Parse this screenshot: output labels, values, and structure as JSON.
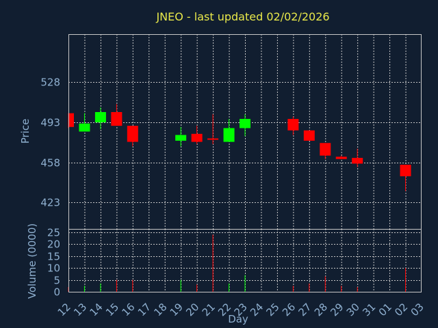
{
  "chart_data": {
    "type": "candlestick",
    "title": "JNEO - last updated 02/02/2026",
    "ylabel": "Price",
    "volume_label": "Volume (0000)",
    "xlabel": "Day",
    "x_ticks": [
      "12",
      "13",
      "14",
      "15",
      "16",
      "17",
      "18",
      "19",
      "20",
      "21",
      "22",
      "23",
      "24",
      "25",
      "26",
      "27",
      "28",
      "29",
      "30",
      "31",
      "01",
      "02",
      "03"
    ],
    "price_ticks": [
      528,
      493,
      458,
      423
    ],
    "price_ylim": [
      400,
      570
    ],
    "volume_ticks": [
      25,
      20,
      15,
      10,
      5,
      0
    ],
    "volume_ylim": [
      0,
      25
    ],
    "grid": true,
    "colors": {
      "up": "#00ff00",
      "down": "#ff0000",
      "grid": "#c8c8c8",
      "frame": "#c8c8c8",
      "text": "#8fb0d0",
      "title": "#e8e84a",
      "background": "#111e30"
    },
    "candles": [
      {
        "day": "12",
        "open": 501,
        "high": 501,
        "low": 488,
        "close": 489,
        "volume": 2.0
      },
      {
        "day": "13",
        "open": 485,
        "high": 501,
        "low": 485,
        "close": 492,
        "volume": 2.5
      },
      {
        "day": "14",
        "open": 493,
        "high": 506,
        "low": 487,
        "close": 502,
        "volume": 3.5
      },
      {
        "day": "15",
        "open": 502,
        "high": 509,
        "low": 490,
        "close": 490,
        "volume": 5.0
      },
      {
        "day": "16",
        "open": 490,
        "high": 490,
        "low": 472,
        "close": 476,
        "volume": 5.0
      },
      {
        "day": "19",
        "open": 477,
        "high": 489,
        "low": 472,
        "close": 482,
        "volume": 5.0
      },
      {
        "day": "20",
        "open": 483,
        "high": 490,
        "low": 474,
        "close": 476,
        "volume": 3.0
      },
      {
        "day": "21",
        "open": 479,
        "high": 500,
        "low": 474,
        "close": 478,
        "volume": 24.0
      },
      {
        "day": "22",
        "open": 476,
        "high": 496,
        "low": 476,
        "close": 488,
        "volume": 3.5
      },
      {
        "day": "23",
        "open": 488,
        "high": 500,
        "low": 481,
        "close": 496,
        "volume": 7.0
      },
      {
        "day": "26",
        "open": 496,
        "high": 498,
        "low": 482,
        "close": 486,
        "volume": 2.5
      },
      {
        "day": "27",
        "open": 486,
        "high": 486,
        "low": 477,
        "close": 477,
        "volume": 3.5
      },
      {
        "day": "28",
        "open": 475,
        "high": 475,
        "low": 461,
        "close": 464,
        "volume": 6.5
      },
      {
        "day": "29",
        "open": 463,
        "high": 464,
        "low": 461,
        "close": 461,
        "volume": 2.5
      },
      {
        "day": "30",
        "open": 462,
        "high": 470,
        "low": 454,
        "close": 457,
        "volume": 2.0
      },
      {
        "day": "02",
        "open": 456,
        "high": 456,
        "low": 433,
        "close": 446,
        "volume": 10.0
      }
    ]
  }
}
